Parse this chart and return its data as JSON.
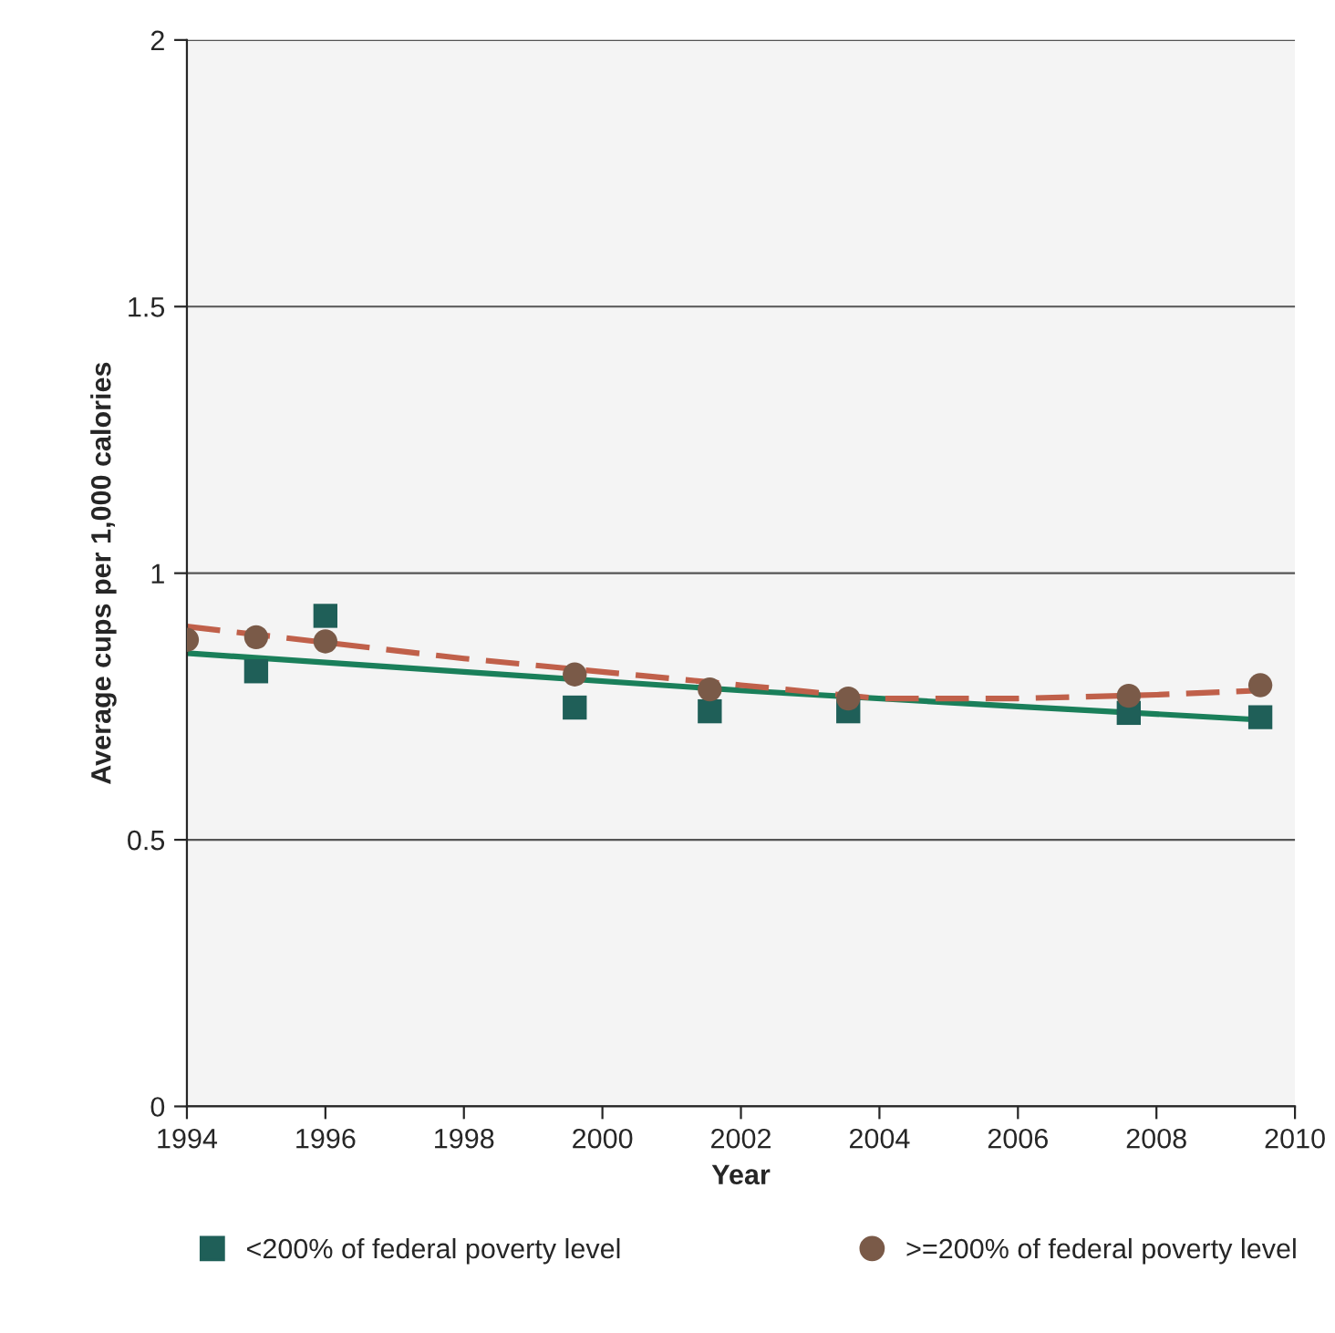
{
  "chart_data": {
    "type": "scatter",
    "xlabel": "Year",
    "ylabel": "Average cups per 1,000 calories",
    "xlim": [
      1994,
      2010
    ],
    "xticks": [
      1994,
      1996,
      1998,
      2000,
      2002,
      2004,
      2006,
      2008,
      2010
    ],
    "ylim": [
      0,
      2
    ],
    "yticks": [
      0,
      0.5,
      1,
      1.5,
      2
    ],
    "grid": "y",
    "legend": "bottom",
    "series": [
      {
        "name": "<200% of federal poverty level",
        "color": "#1f5f58",
        "marker": "square",
        "x": [
          1995,
          1996,
          1999.6,
          2001.55,
          2003.55,
          2007.6,
          2009.5
        ],
        "values": [
          0.816,
          0.92,
          0.748,
          0.741,
          0.741,
          0.738,
          0.73
        ]
      },
      {
        "name": ">=200% of federal poverty level",
        "color": "#7a5a48",
        "marker": "circle",
        "x": [
          1994,
          1995,
          1996,
          1999.6,
          2001.55,
          2003.55,
          2007.6,
          2009.5
        ],
        "values": [
          0.875,
          0.88,
          0.872,
          0.81,
          0.782,
          0.765,
          0.77,
          0.79
        ]
      },
      {
        "type": "line",
        "color": "#1a7f5a",
        "line_style": "solid",
        "marker": "none",
        "x": [
          1994,
          1998,
          2002,
          2006,
          2009.5
        ],
        "values": [
          0.85,
          0.815,
          0.78,
          0.75,
          0.725
        ]
      },
      {
        "type": "line",
        "color": "#c0604a",
        "line_style": "dashed",
        "marker": "none",
        "x": [
          1994,
          1998,
          2002,
          2004,
          2006,
          2008,
          2009.5
        ],
        "values": [
          0.9,
          0.84,
          0.79,
          0.765,
          0.765,
          0.772,
          0.78
        ]
      }
    ]
  }
}
